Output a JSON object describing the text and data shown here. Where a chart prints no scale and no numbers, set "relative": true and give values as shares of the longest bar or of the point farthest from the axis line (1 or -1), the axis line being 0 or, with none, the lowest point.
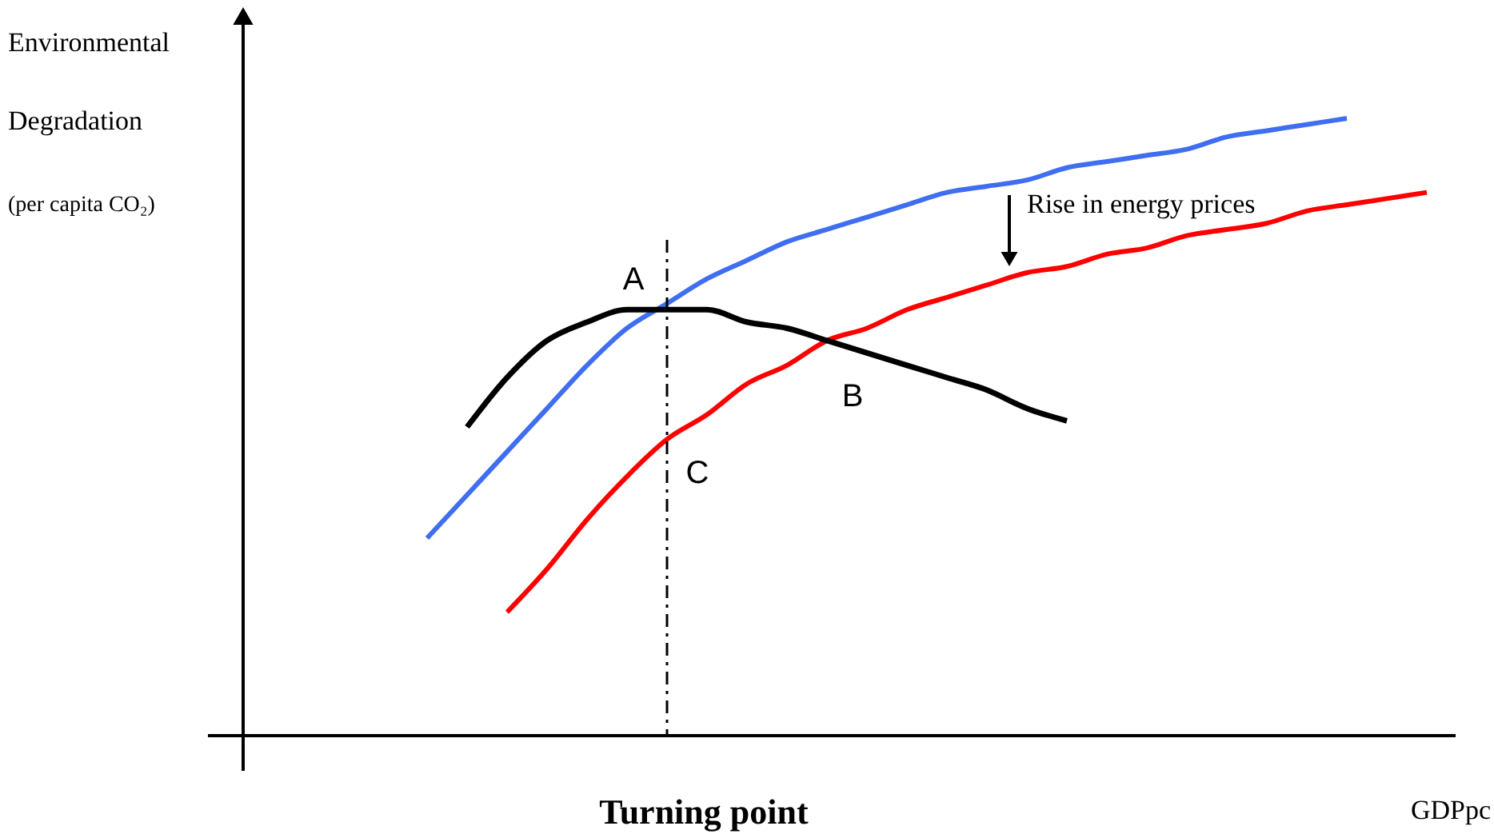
{
  "chart_data": {
    "type": "line",
    "relative": true,
    "marker": "none",
    "line_style": "solid",
    "xlabel": "GDPpc",
    "ylabel": "Environmental\nDegradation\n(per capita CO₂)",
    "categories": [
      null,
      null,
      null,
      null,
      null,
      null,
      null,
      null,
      null,
      null,
      null,
      null,
      null,
      null,
      null,
      null,
      null,
      null,
      null,
      null,
      null,
      null,
      null,
      null,
      null,
      null
    ],
    "series": [
      {
        "color": "#3f6ef0",
        "values": [
          0.32,
          0.39,
          0.46,
          0.53,
          0.6,
          0.66,
          0.7,
          0.74,
          0.77,
          0.8,
          0.82,
          0.84,
          0.86,
          0.88,
          0.89,
          0.9,
          0.92,
          0.93,
          0.94,
          0.95,
          0.97,
          0.98,
          0.99,
          1.0,
          null,
          null
        ]
      },
      {
        "color": "#ff0000",
        "values": [
          null,
          null,
          0.2,
          0.27,
          0.35,
          0.42,
          0.48,
          0.52,
          0.57,
          0.6,
          0.64,
          0.66,
          0.69,
          0.71,
          0.73,
          0.75,
          0.76,
          0.78,
          0.79,
          0.81,
          0.82,
          0.83,
          0.85,
          0.86,
          0.87,
          0.88
        ]
      },
      {
        "color": "#000000",
        "values": [
          null,
          0.5,
          0.58,
          0.64,
          0.67,
          0.69,
          0.69,
          0.69,
          0.67,
          0.66,
          0.64,
          0.62,
          0.6,
          0.58,
          0.56,
          0.53,
          0.51,
          null,
          null,
          null,
          null,
          null,
          null,
          null,
          null,
          null
        ]
      }
    ],
    "annotations": [
      "A",
      "B",
      "C",
      "Rise in energy prices",
      "Turning point"
    ]
  }
}
